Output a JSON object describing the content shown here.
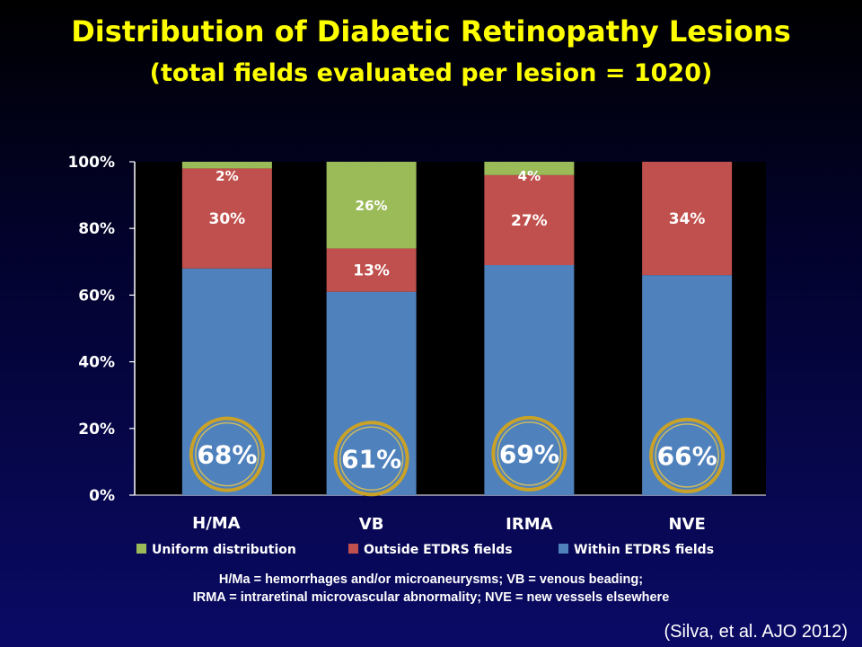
{
  "title": "Distribution of Diabetic Retinopathy Lesions",
  "subtitle": "(total fields evaluated per lesion = 1020)",
  "colors": {
    "within": "#4f81bd",
    "outside": "#c0504d",
    "uniform": "#9bbb59",
    "plot_background": "#000000",
    "ring": "#c9a227",
    "title": "#ffff00"
  },
  "chart_data": {
    "type": "bar",
    "stacked": true,
    "categories": [
      "H/MA",
      "VB",
      "IRMA",
      "NVE"
    ],
    "ylim": [
      0,
      100
    ],
    "yticks": [
      0,
      20,
      40,
      60,
      80,
      100
    ],
    "ytick_labels": [
      "0%",
      "20%",
      "40%",
      "60%",
      "80%",
      "100%"
    ],
    "series": [
      {
        "name": "Within ETDRS fields",
        "values": [
          68,
          61,
          69,
          66
        ],
        "labels": [
          "68%",
          "61%",
          "69%",
          "66%"
        ],
        "color": "#4f81bd"
      },
      {
        "name": "Outside ETDRS fields",
        "values": [
          30,
          13,
          27,
          34
        ],
        "labels": [
          "30%",
          "13%",
          "27%",
          "34%"
        ],
        "color": "#c0504d"
      },
      {
        "name": "Uniform distribution",
        "values": [
          2,
          26,
          4,
          0
        ],
        "labels": [
          "2%",
          "26%",
          "4%",
          ""
        ],
        "color": "#9bbb59"
      }
    ],
    "legend_order": [
      "Uniform distribution",
      "Outside ETDRS fields",
      "Within ETDRS fields"
    ],
    "legend_position": "bottom",
    "grid": false,
    "highlight": "gold rings around Within ETDRS fields labels"
  },
  "footnote": {
    "line1": "H/Ma = hemorrhages and/or microaneurysms; VB = venous beading;",
    "line2": "IRMA = intraretinal microvascular abnormality; NVE = new vessels elsewhere"
  },
  "citation": "(Silva, et al. AJO 2012)"
}
